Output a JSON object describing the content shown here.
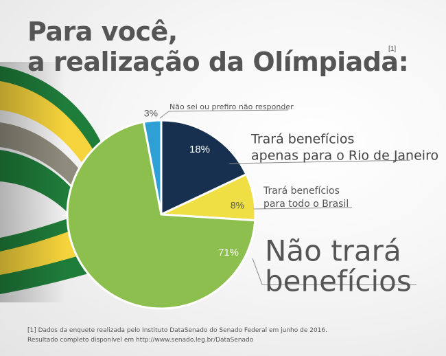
{
  "title_line1": "Para você,",
  "title_line2": "a realização da Olímpiada:",
  "title_ref": "[1]",
  "footnote_line1": "[1] Dados da enquete realizada pelo Instituto DataSenado do Senado Federal em junho de 2016.",
  "footnote_line2": "Resultado completo disponível em http://www.senado.leg.br/DataSenado",
  "colors": {
    "dark_navy": "#17304f",
    "yellow": "#f0de45",
    "green": "#8cbf4e",
    "blue": "#2f9fd6",
    "ribbon_green": "#1f7d3a",
    "ribbon_yellow": "#f5d33c"
  },
  "chart_data": {
    "type": "pie",
    "title": "Para você, a realização da Olímpiada:",
    "slices": [
      {
        "value": 18,
        "display": "18%",
        "label_lines": [
          "Trará benefícios",
          "apenas para o Rio de Janeiro"
        ],
        "color": "#17304f"
      },
      {
        "value": 8,
        "display": "8%",
        "label_lines": [
          "Trará benefícios",
          "para todo o Brasil"
        ],
        "color": "#f0de45"
      },
      {
        "value": 71,
        "display": "71%",
        "label_lines": [
          "Não trará",
          "benefícios"
        ],
        "color": "#8cbf4e"
      },
      {
        "value": 3,
        "display": "3%",
        "label_lines": [
          "Não sei ou prefiro não responder"
        ],
        "color": "#2f9fd6"
      }
    ],
    "start_angle_deg": 0,
    "direction": "clockwise"
  }
}
